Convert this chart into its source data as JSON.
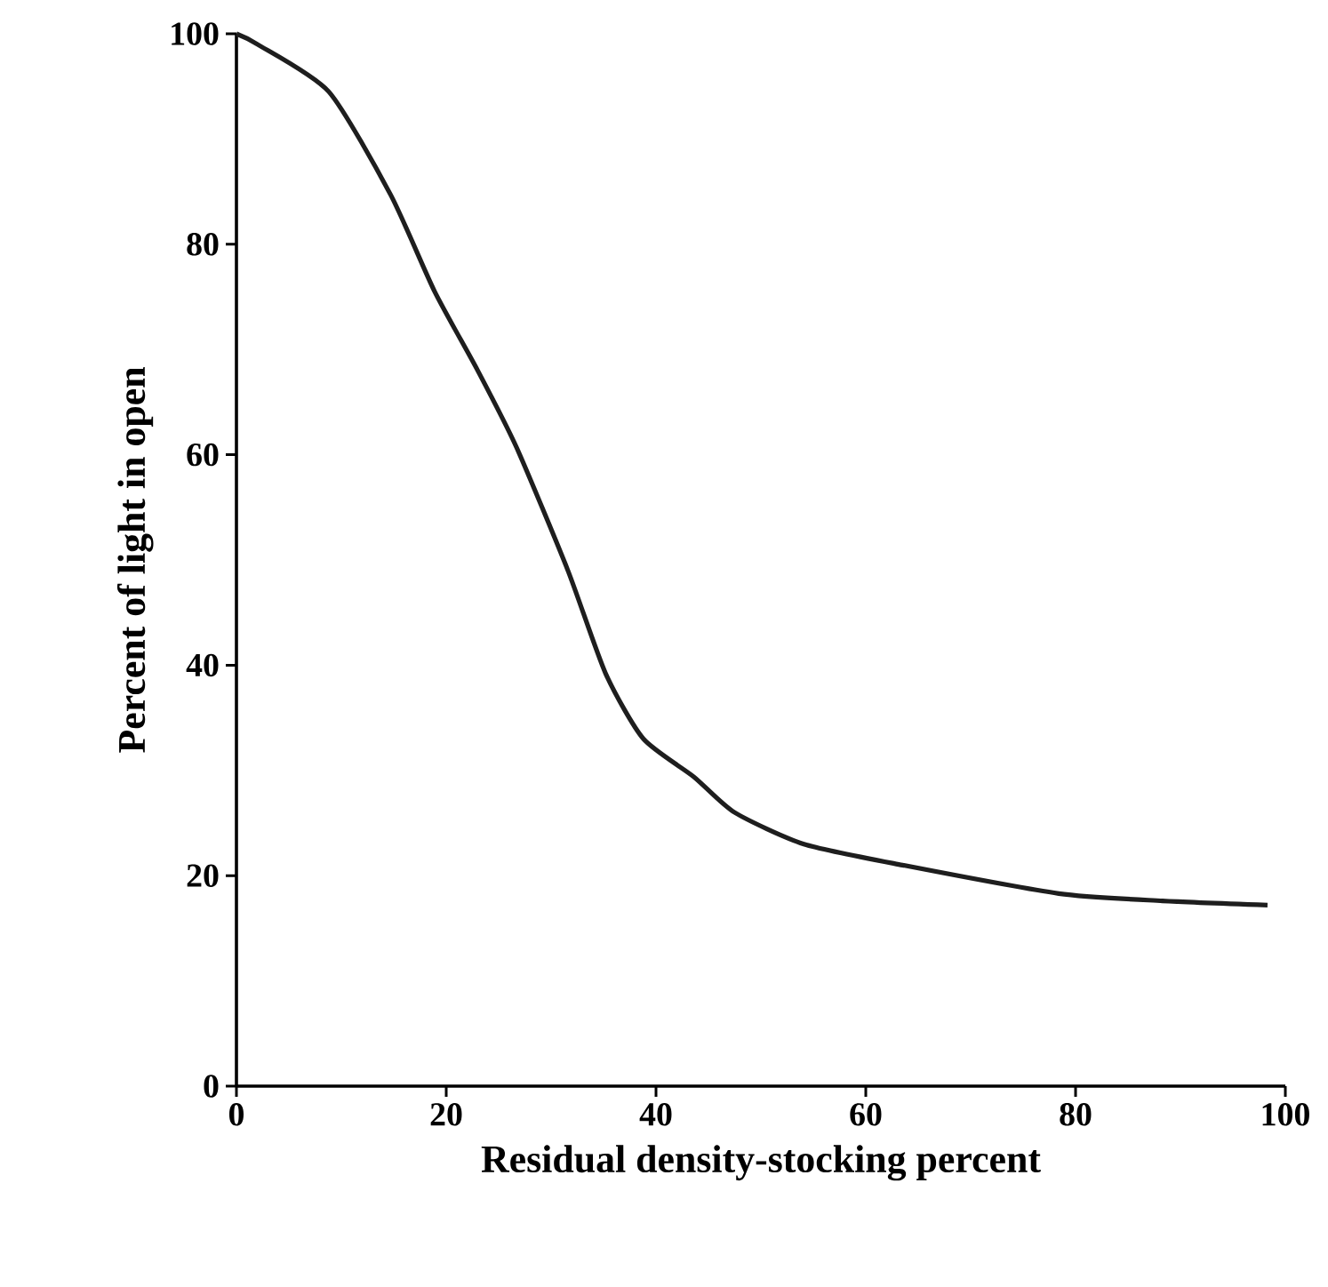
{
  "chart_data": {
    "type": "line",
    "xlabel": "Residual density-stocking percent",
    "ylabel": "Percent of light in open",
    "xlim": [
      0,
      100
    ],
    "ylim": [
      0,
      100
    ],
    "xticks": [
      0,
      20,
      40,
      60,
      80,
      100
    ],
    "yticks": [
      0,
      20,
      40,
      60,
      80,
      100
    ],
    "grid": false,
    "marker": "none",
    "line_style": "solid",
    "series": [
      {
        "color": "#1e1e1e",
        "x": [
          0,
          2,
          8.8,
          14.7,
          18.9,
          23,
          26.7,
          31.6,
          35.2,
          38.8,
          43.6,
          47.5,
          54.1,
          63.5,
          78.4,
          88.3,
          98.3
        ],
        "values": [
          100,
          99,
          94.5,
          84.7,
          75.5,
          68,
          60.7,
          49,
          39.2,
          33,
          29.4,
          26,
          23,
          21,
          18.3,
          17.6,
          17.2
        ]
      }
    ]
  }
}
